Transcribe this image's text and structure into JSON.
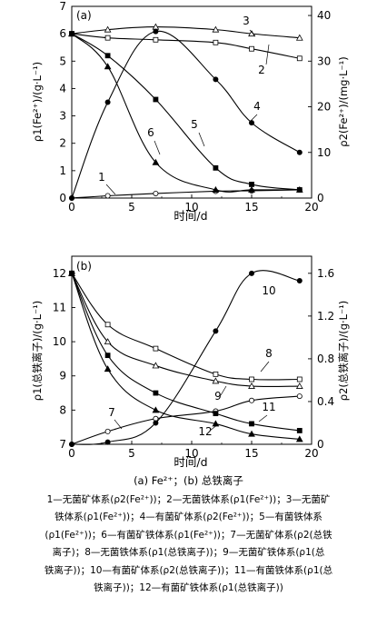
{
  "chart_data": [
    {
      "type": "line",
      "panel_label": "(a)",
      "xlabel": "时间/d",
      "ylabel_left": "ρ1(Fe²⁺)/(g·L⁻¹)",
      "ylabel_right": "ρ2(Fe²⁺)/(mg·L⁻¹)",
      "xlim": [
        0,
        20
      ],
      "ylim_left": [
        0,
        7
      ],
      "ylim_right": [
        0,
        42
      ],
      "xticks": [
        "0",
        "5",
        "10",
        "15",
        "20"
      ],
      "yticks_left": [
        "0",
        "1",
        "2",
        "3",
        "4",
        "5",
        "6",
        "7"
      ],
      "yticks_right": [
        "0",
        "10",
        "20",
        "30",
        "40"
      ],
      "series": [
        {
          "name": "1",
          "axis": "right",
          "marker": "open-circle",
          "x": [
            0,
            3,
            7,
            12,
            15,
            19
          ],
          "y": [
            0,
            0.5,
            1.0,
            1.5,
            1.6,
            1.8
          ]
        },
        {
          "name": "2",
          "axis": "left",
          "marker": "open-square",
          "x": [
            0,
            3,
            7,
            12,
            15,
            19
          ],
          "y": [
            6.0,
            5.85,
            5.78,
            5.68,
            5.45,
            5.1
          ]
        },
        {
          "name": "3",
          "axis": "left",
          "marker": "open-triangle",
          "x": [
            0,
            3,
            7,
            12,
            15,
            19
          ],
          "y": [
            6.0,
            6.15,
            6.25,
            6.15,
            6.0,
            5.85
          ]
        },
        {
          "name": "4",
          "axis": "right",
          "marker": "filled-circle",
          "x": [
            0,
            3,
            7,
            12,
            15,
            19
          ],
          "y": [
            0,
            21,
            36.5,
            26,
            16.5,
            10
          ]
        },
        {
          "name": "5",
          "axis": "left",
          "marker": "filled-square",
          "x": [
            0,
            3,
            7,
            12,
            15,
            19
          ],
          "y": [
            6.0,
            5.2,
            3.6,
            1.1,
            0.5,
            0.3
          ]
        },
        {
          "name": "6",
          "axis": "left",
          "marker": "filled-triangle",
          "x": [
            0,
            3,
            7,
            12,
            15,
            19
          ],
          "y": [
            6.0,
            4.8,
            1.3,
            0.3,
            0.3,
            0.3
          ]
        }
      ]
    },
    {
      "type": "line",
      "panel_label": "(b)",
      "xlabel": "时间/d",
      "ylabel_left": "ρ1(总铁离子)/(g·L⁻¹)",
      "ylabel_right": "ρ2(总铁离子)/(g·L⁻¹)",
      "xlim": [
        0,
        20
      ],
      "ylim_left": [
        7,
        12.5
      ],
      "ylim_right": [
        0,
        1.76
      ],
      "xticks": [
        "0",
        "5",
        "10",
        "15",
        "20"
      ],
      "yticks_left": [
        "7",
        "8",
        "9",
        "10",
        "11",
        "12"
      ],
      "yticks_right": [
        "0",
        "0.4",
        "0.8",
        "1.2",
        "1.6"
      ],
      "series": [
        {
          "name": "7",
          "axis": "right",
          "marker": "open-circle",
          "x": [
            0,
            3,
            7,
            12,
            15,
            19
          ],
          "y": [
            0,
            0.12,
            0.24,
            0.31,
            0.41,
            0.45
          ]
        },
        {
          "name": "8",
          "axis": "left",
          "marker": "open-square",
          "x": [
            0,
            3,
            7,
            12,
            15,
            19
          ],
          "y": [
            12.0,
            10.5,
            9.8,
            9.05,
            8.9,
            8.9
          ]
        },
        {
          "name": "9",
          "axis": "left",
          "marker": "open-triangle",
          "x": [
            0,
            3,
            7,
            12,
            15,
            19
          ],
          "y": [
            12.0,
            10.0,
            9.3,
            8.85,
            8.7,
            8.7
          ]
        },
        {
          "name": "10",
          "axis": "right",
          "marker": "filled-circle",
          "x": [
            0,
            3,
            7,
            12,
            15,
            19
          ],
          "y": [
            0,
            0.02,
            0.2,
            1.06,
            1.6,
            1.53
          ]
        },
        {
          "name": "11",
          "axis": "left",
          "marker": "filled-square",
          "x": [
            0,
            3,
            7,
            12,
            15,
            19
          ],
          "y": [
            12.0,
            9.6,
            8.5,
            7.9,
            7.6,
            7.4
          ]
        },
        {
          "name": "12",
          "axis": "left",
          "marker": "filled-triangle",
          "x": [
            0,
            3,
            7,
            12,
            15,
            19
          ],
          "y": [
            12.0,
            9.2,
            8.0,
            7.6,
            7.3,
            7.15
          ]
        }
      ]
    }
  ],
  "caption": {
    "subcaption": "(a) Fe²⁺；(b) 总铁离子",
    "lines": [
      "1—无菌矿体系(ρ2(Fe²⁺))；2—无菌铁体系(ρ1(Fe²⁺))；3—无菌矿",
      "铁体系(ρ1(Fe²⁺))；4—有菌矿体系(ρ2(Fe²⁺))；5—有菌铁体系",
      "(ρ1(Fe²⁺))；6—有菌矿铁体系(ρ1(Fe²⁺))；7—无菌矿体系(ρ2(总铁",
      "离子)；8—无菌铁体系(ρ1(总铁离子))；9—无菌矿铁体系(ρ1(总",
      "铁离子))；10—有菌矿体系(ρ2(总铁离子))；11—有菌铁体系(ρ1(总",
      "铁离子))；12—有菌矿铁体系(ρ1(总铁离子))"
    ]
  }
}
